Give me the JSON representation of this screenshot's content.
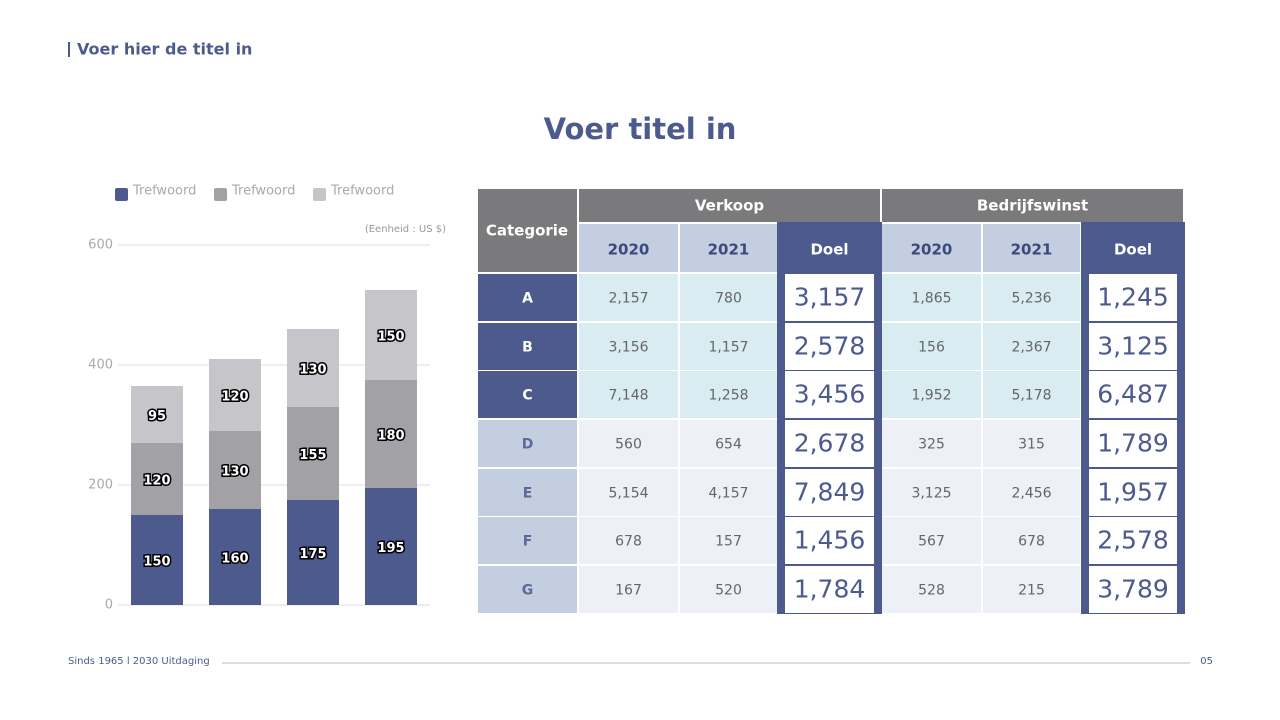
{
  "header": {
    "title": "Voer hier de titel in"
  },
  "main_title": "Voer titel in",
  "chart_data": {
    "type": "bar",
    "stacked": true,
    "categories": [
      null,
      null,
      null,
      null
    ],
    "series": [
      {
        "name": "Trefwoord",
        "color": "#4d5a8e",
        "values": [
          150,
          160,
          175,
          195
        ]
      },
      {
        "name": "Trefwoord",
        "color": "#a2a2a6",
        "values": [
          120,
          130,
          155,
          180
        ]
      },
      {
        "name": "Trefwoord",
        "color": "#c6c6ca",
        "values": [
          95,
          120,
          130,
          150
        ]
      }
    ],
    "annotation": "(Eenheid : US $)",
    "ylim": [
      0,
      600
    ],
    "yticks": [
      0,
      200,
      400,
      600
    ],
    "grid": true
  },
  "table": {
    "header": "Categorie",
    "groups": [
      "Verkoop",
      "Bedrijfswinst"
    ],
    "columns": [
      "2020",
      "2021",
      "Doel",
      "2020",
      "2021",
      "Doel"
    ],
    "rows": [
      [
        "A",
        "2,157",
        "780",
        "3,157",
        "1,865",
        "5,236",
        "1,245"
      ],
      [
        "B",
        "3,156",
        "1,157",
        "2,578",
        "156",
        "2,367",
        "3,125"
      ],
      [
        "C",
        "7,148",
        "1,258",
        "3,456",
        "1,952",
        "5,178",
        "6,487"
      ],
      [
        "D",
        "560",
        "654",
        "2,678",
        "325",
        "315",
        "1,789"
      ],
      [
        "E",
        "5,154",
        "4,157",
        "7,849",
        "3,125",
        "2,456",
        "1,957"
      ],
      [
        "F",
        "678",
        "157",
        "1,456",
        "567",
        "678",
        "2,578"
      ],
      [
        "G",
        "167",
        "520",
        "1,784",
        "528",
        "215",
        "3,789"
      ]
    ]
  },
  "footer": {
    "text": "Sinds 1965 l 2030 Uitdaging",
    "page": "05"
  }
}
